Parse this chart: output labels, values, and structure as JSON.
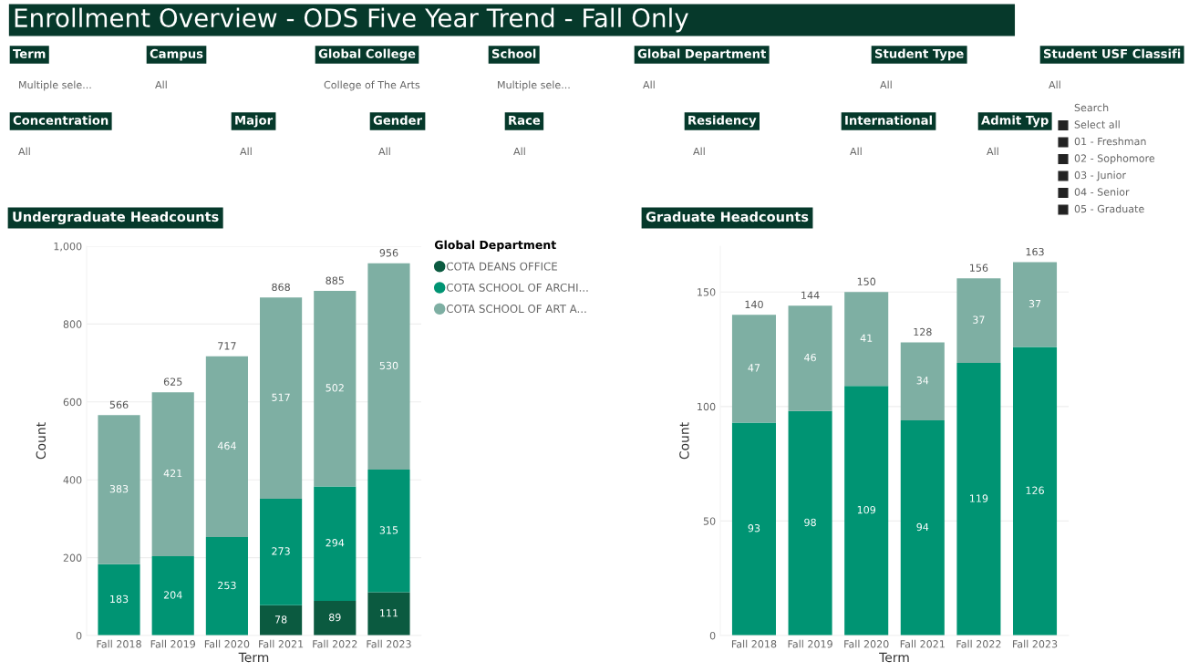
{
  "chart_data": [
    {
      "type": "other",
      "title": "Enrollment Overview - ODS Five Year Trend - Fall Only",
      "annotations": [
        "Term",
        "Multiple sele...",
        "Campus",
        "All",
        "Global College",
        "College of The Arts",
        "School",
        "Multiple sele...",
        "Global Department",
        "All",
        "Student Type",
        "All",
        "Student USF Classifi",
        "All",
        "Concentration",
        "All",
        "Major",
        "All",
        "Gender",
        "All",
        "Race",
        "All",
        "Residency",
        "All",
        "International",
        "All",
        "Admit Typ",
        "All",
        "Search",
        "Select all",
        "01 - Freshman",
        "02 - Sophomore",
        "03 - Junior",
        "04 - Senior",
        "05 - Graduate"
      ]
    },
    {
      "type": "bar",
      "title": "Undergraduate Headcounts",
      "xlabel": "Term",
      "ylabel": "Count",
      "stacked": true,
      "categories": [
        "Fall 2018",
        "Fall 2019",
        "Fall 2020",
        "Fall 2021",
        "Fall 2022",
        "Fall 2023"
      ],
      "legend_title": "Global Department",
      "legend": "right",
      "series": [
        {
          "name": "COTA DEANS OFFICE",
          "color": "#0b5a40",
          "values": [
            null,
            null,
            null,
            78,
            89,
            111
          ]
        },
        {
          "name": "COTA SCHOOL OF ARCHI...",
          "color": "#009473",
          "values": [
            183,
            204,
            253,
            273,
            294,
            315
          ]
        },
        {
          "name": "COTA SCHOOL OF ART A...",
          "color": "#7eafa3",
          "values": [
            383,
            421,
            464,
            517,
            502,
            530
          ]
        }
      ],
      "ylim": [
        0,
        1000
      ],
      "yticks": [
        0,
        200,
        400,
        600,
        800,
        {
          "value": 1000,
          "label": "1,000"
        }
      ],
      "grid": "y",
      "data_labels": true,
      "totals": [
        "566",
        "625",
        "717",
        "868",
        "885",
        "956"
      ]
    },
    {
      "type": "bar",
      "title": "Graduate Headcounts",
      "xlabel": "Term",
      "ylabel": "Count",
      "stacked": true,
      "categories": [
        "Fall 2018",
        "Fall 2019",
        "Fall 2020",
        "Fall 2021",
        "Fall 2022",
        "Fall 2023"
      ],
      "series": [
        {
          "color": "#009473",
          "values": [
            93,
            98,
            109,
            94,
            119,
            126
          ]
        },
        {
          "color": "#7eafa3",
          "values": [
            47,
            46,
            41,
            34,
            37,
            37
          ]
        }
      ],
      "ylim": [
        0,
        170
      ],
      "yticks": [
        0,
        50,
        100,
        150
      ],
      "grid": "y",
      "data_labels": true,
      "totals": [
        "140",
        "144",
        "150",
        "128",
        "156",
        "163"
      ]
    }
  ]
}
